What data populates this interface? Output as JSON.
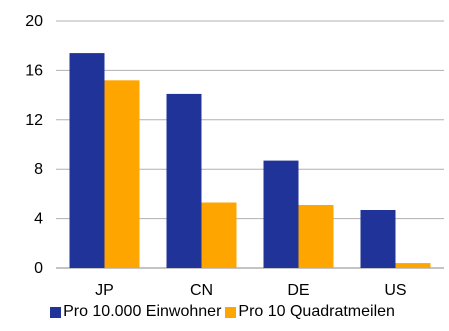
{
  "chart_data": {
    "type": "bar",
    "categories": [
      "JP",
      "CN",
      "DE",
      "US"
    ],
    "series": [
      {
        "name": "Pro 10.000 Einwohner",
        "values": [
          17.4,
          14.1,
          8.7,
          4.7
        ],
        "color": "#1f3399"
      },
      {
        "name": "Pro 10 Quadratmeilen",
        "values": [
          15.2,
          5.3,
          5.1,
          0.4
        ],
        "color": "#ffa500"
      }
    ],
    "title": "",
    "xlabel": "",
    "ylabel": "",
    "ylim": [
      0,
      20
    ],
    "yticks": [
      "0",
      "4",
      "8",
      "12",
      "16",
      "20"
    ],
    "grid": true,
    "legend_position": "bottom"
  }
}
